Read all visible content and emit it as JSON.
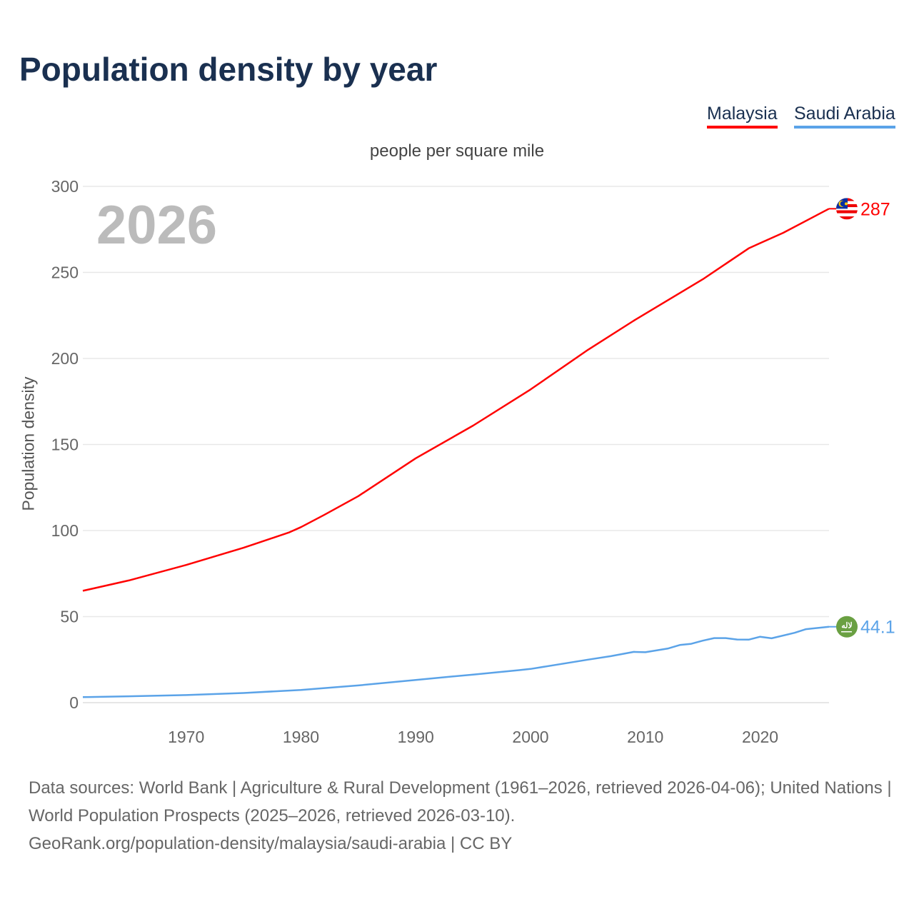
{
  "title": "Population density by year",
  "legend": [
    {
      "name": "Malaysia",
      "color": "#ff0000"
    },
    {
      "name": "Saudi Arabia",
      "color": "#5ba3e8"
    }
  ],
  "big_year": "2026",
  "footer": {
    "line1": "Data sources: World Bank | Agriculture & Rural Development (1961–2026, retrieved 2026-04-06); United Nations | World Population Prospects (2025–2026, retrieved 2026-03-10).",
    "line2": "GeoRank.org/population-density/malaysia/saudi-arabia | CC BY"
  },
  "chart_data": {
    "type": "line",
    "title": "Population density by year",
    "subtitle": "people per square mile",
    "xlabel": "",
    "ylabel": "Population density",
    "xlim": [
      1961,
      2026
    ],
    "ylim": [
      0,
      300
    ],
    "xticks": [
      1970,
      1980,
      1990,
      2000,
      2010,
      2020
    ],
    "yticks": [
      0,
      50,
      100,
      150,
      200,
      250,
      300
    ],
    "grid": true,
    "legend_position": "top-right",
    "series": [
      {
        "name": "Malaysia",
        "color": "#ff0000",
        "end_label": "287",
        "flag": "malaysia-flag",
        "x": [
          1961,
          1965,
          1970,
          1975,
          1979,
          1980,
          1982,
          1985,
          1990,
          1995,
          2000,
          2005,
          2009,
          2010,
          2015,
          2019,
          2020,
          2022,
          2026
        ],
        "y": [
          65,
          71,
          80,
          90,
          99,
          102,
          109,
          120,
          142,
          161,
          182,
          205,
          222,
          226,
          246,
          264,
          267,
          273,
          287
        ]
      },
      {
        "name": "Saudi Arabia",
        "color": "#5ba3e8",
        "end_label": "44.1",
        "flag": "saudi-arabia-flag",
        "x": [
          1961,
          1965,
          1970,
          1975,
          1980,
          1985,
          1990,
          1995,
          1999,
          2000,
          2005,
          2007,
          2009,
          2010,
          2012,
          2013,
          2014,
          2015,
          2016,
          2017,
          2018,
          2019,
          2020,
          2021,
          2023,
          2024,
          2026
        ],
        "y": [
          3.2,
          3.7,
          4.4,
          5.6,
          7.4,
          10,
          13.2,
          16.3,
          18.9,
          19.6,
          25,
          27,
          29.5,
          29.3,
          31.5,
          33.5,
          34.2,
          36,
          37.5,
          37.5,
          36.7,
          36.6,
          38.3,
          37.4,
          40.6,
          42.7,
          44.1
        ]
      }
    ]
  }
}
